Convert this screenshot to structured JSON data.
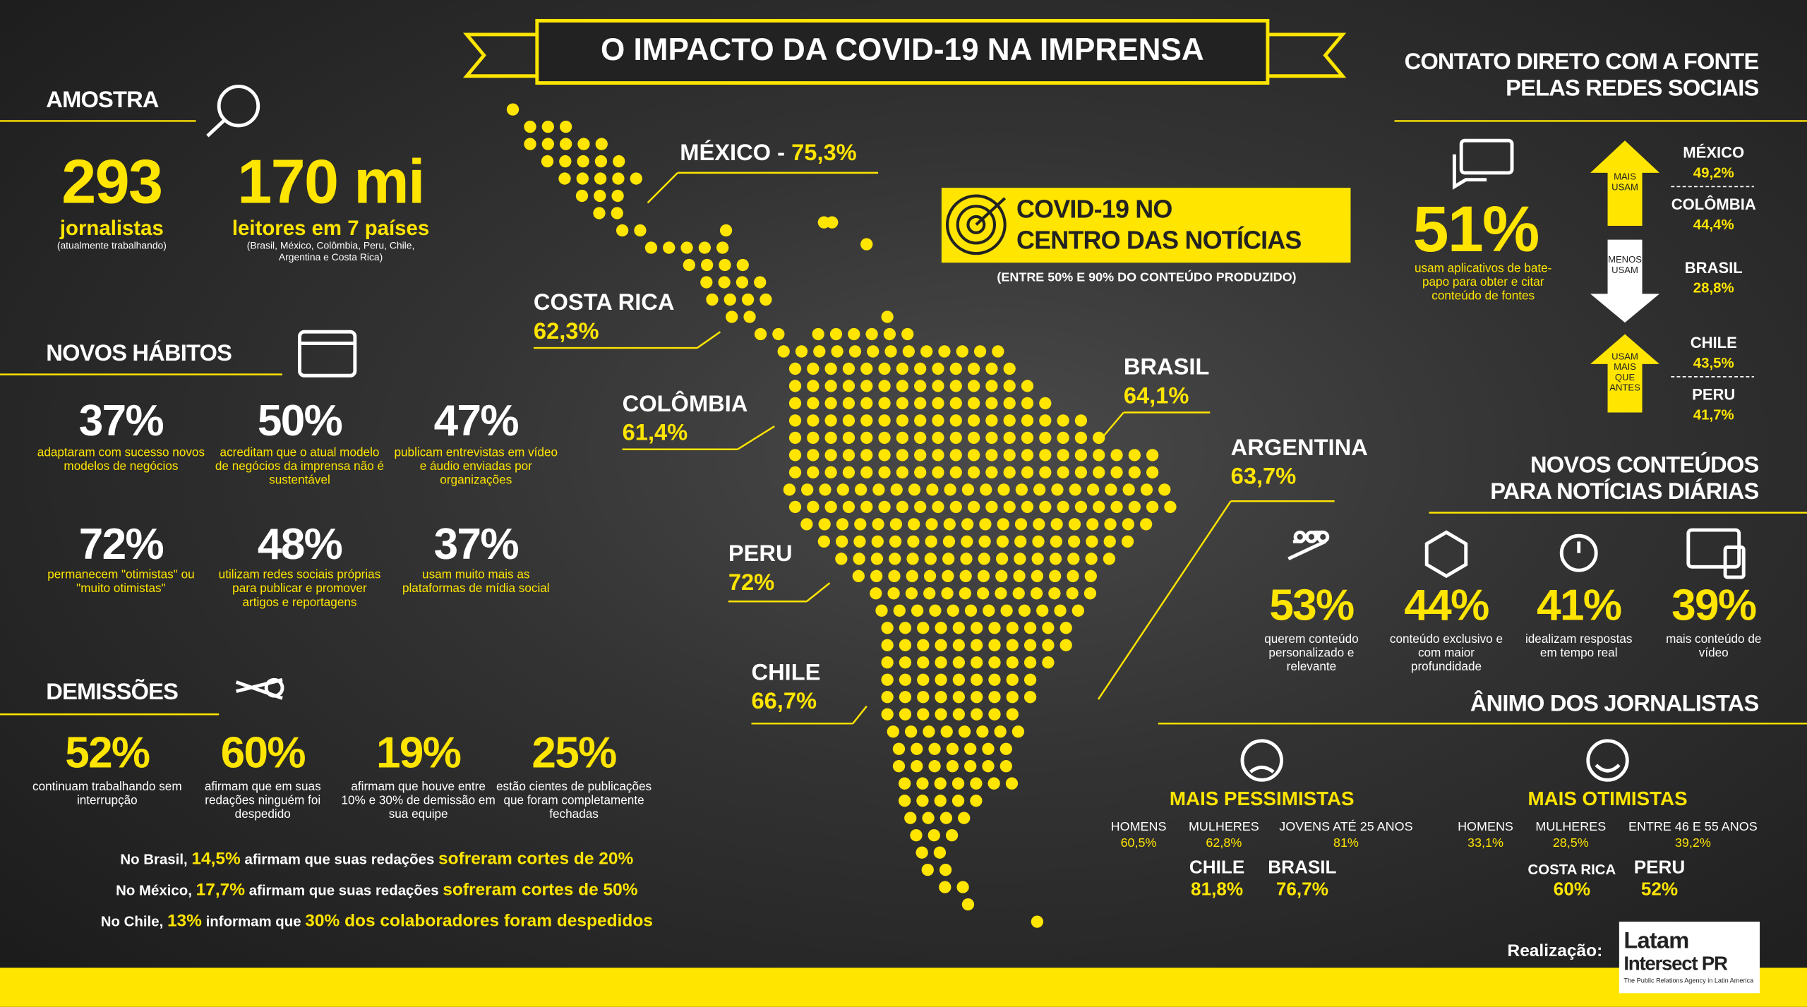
{
  "title": "O IMPACTO DA COVID-19 NA IMPRENSA",
  "amostra": {
    "heading": "AMOSTRA",
    "items": [
      {
        "value": "293",
        "label": "jornalistas",
        "note": "(atualmente trabalhando)"
      },
      {
        "value": "170 mi",
        "label": "leitores em 7 países",
        "note": "(Brasil, México, Colômbia, Peru, Chile, Argentina e Costa Rica)"
      }
    ]
  },
  "novos_habitos": {
    "heading": "NOVOS HÁBITOS",
    "items": [
      {
        "value": "37%",
        "text": "adaptaram com sucesso novos modelos de negócios"
      },
      {
        "value": "50%",
        "text": "acreditam que o atual modelo de negócios da imprensa não é sustentável"
      },
      {
        "value": "47%",
        "text": "publicam entrevistas em vídeo e áudio enviadas por organizações"
      },
      {
        "value": "72%",
        "text": "permanecem \"otimistas\" ou \"muito otimistas\""
      },
      {
        "value": "48%",
        "text": "utilizam redes sociais próprias para publicar e promover artigos e reportagens"
      },
      {
        "value": "37%",
        "text": "usam muito mais as plataformas de mídia social"
      }
    ]
  },
  "demissoes": {
    "heading": "DEMISSÕES",
    "items": [
      {
        "value": "52%",
        "text": "continuam trabalhando sem interrupção"
      },
      {
        "value": "60%",
        "text": "afirmam que em suas redações ninguém foi despedido"
      },
      {
        "value": "19%",
        "text": "afirmam que houve entre 10% e 30% de demissão em sua equipe"
      },
      {
        "value": "25%",
        "text": "estão cientes de publicações que foram completamente fechadas"
      }
    ],
    "notes": [
      [
        "No Brasil, ",
        "14,5%",
        " afirmam que suas redações ",
        "sofreram cortes de 20%"
      ],
      [
        "No México, ",
        "17,7%",
        " afirmam que suas redações ",
        "sofreram cortes de 50%"
      ],
      [
        "No Chile, ",
        "13%",
        " informam que ",
        "30% dos colaboradores foram despedidos"
      ]
    ]
  },
  "map": [
    {
      "name": "MÉXICO -",
      "value": "75,3%"
    },
    {
      "name": "COSTA RICA",
      "value": "62,3%"
    },
    {
      "name": "COLÔMBIA",
      "value": "61,4%"
    },
    {
      "name": "PERU",
      "value": "72%"
    },
    {
      "name": "CHILE",
      "value": "66,7%"
    },
    {
      "name": "BRASIL",
      "value": "64,1%"
    },
    {
      "name": "ARGENTINA",
      "value": "63,7%"
    }
  ],
  "centro": {
    "title_lines": [
      "COVID-19 NO",
      "CENTRO DAS NOTÍCIAS"
    ],
    "subtitle": "(ENTRE 50% E 90% DO CONTEÚDO PRODUZIDO)"
  },
  "contato": {
    "heading_lines": [
      "CONTATO DIRETO COM A FONTE",
      "PELAS REDES SOCIAIS"
    ],
    "value": "51%",
    "text": "usam aplicativos de bate-papo para obter e citar conteúdo de fontes",
    "groups": [
      {
        "arrow": "MAIS USAM",
        "countries": [
          {
            "name": "MÉXICO",
            "value": "49,2%"
          },
          {
            "name": "COLÔMBIA",
            "value": "44,4%"
          }
        ]
      },
      {
        "arrow": "MENOS USAM",
        "countries": [
          {
            "name": "BRASIL",
            "value": "28,8%"
          }
        ]
      },
      {
        "arrow": "USAM MAIS QUE ANTES",
        "countries": [
          {
            "name": "CHILE",
            "value": "43,5%"
          },
          {
            "name": "PERU",
            "value": "41,7%"
          }
        ]
      }
    ]
  },
  "novos_conteudos": {
    "heading_lines": [
      "NOVOS CONTEÚDOS",
      "PARA NOTÍCIAS DIÁRIAS"
    ],
    "items": [
      {
        "value": "53%",
        "text": "querem conteúdo personalizado e relevante"
      },
      {
        "value": "44%",
        "text": "conteúdo exclusivo e com maior profundidade"
      },
      {
        "value": "41%",
        "text": "idealizam respostas em tempo real"
      },
      {
        "value": "39%",
        "text": "mais conteúdo de vídeo"
      }
    ]
  },
  "animo": {
    "heading": "ÂNIMO DOS JORNALISTAS",
    "groups": [
      {
        "title": "MAIS PESSIMISTAS",
        "items": [
          {
            "label": "HOMENS",
            "value": "60,5%"
          },
          {
            "label": "MULHERES",
            "value": "62,8%"
          },
          {
            "label": "JOVENS ATÉ 25 ANOS",
            "value": "81%"
          }
        ],
        "countries": [
          {
            "name": "CHILE",
            "value": "81,8%"
          },
          {
            "name": "BRASIL",
            "value": "76,7%"
          }
        ]
      },
      {
        "title": "MAIS OTIMISTAS",
        "items": [
          {
            "label": "HOMENS",
            "value": "33,1%"
          },
          {
            "label": "MULHERES",
            "value": "28,5%"
          },
          {
            "label": "ENTRE 46 E 55 ANOS",
            "value": "39,2%"
          }
        ],
        "countries": [
          {
            "name": "COSTA RICA",
            "value": "60%"
          },
          {
            "name": "PERU",
            "value": "52%"
          }
        ]
      }
    ]
  },
  "footer": {
    "label": "Realização:",
    "logo_lines": [
      "Latam",
      "Intersect PR"
    ],
    "logo_tagline": "The Public Relations Agency in Latin America"
  }
}
